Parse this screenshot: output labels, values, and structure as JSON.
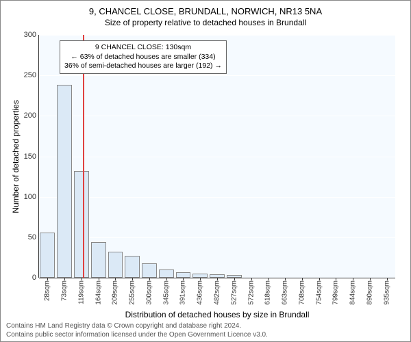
{
  "title": "9, CHANCEL CLOSE, BRUNDALL, NORWICH, NR13 5NA",
  "subtitle": "Size of property relative to detached houses in Brundall",
  "y_axis": {
    "label": "Number of detached properties",
    "min": 0,
    "max": 300,
    "tick_step": 50,
    "ticks": [
      0,
      50,
      100,
      150,
      200,
      250,
      300
    ]
  },
  "x_axis": {
    "label": "Distribution of detached houses by size in Brundall",
    "ticks": [
      "28sqm",
      "73sqm",
      "119sqm",
      "164sqm",
      "209sqm",
      "255sqm",
      "300sqm",
      "345sqm",
      "391sqm",
      "436sqm",
      "482sqm",
      "527sqm",
      "572sqm",
      "618sqm",
      "663sqm",
      "708sqm",
      "754sqm",
      "799sqm",
      "844sqm",
      "890sqm",
      "935sqm"
    ]
  },
  "bars": {
    "values": [
      56,
      238,
      132,
      44,
      32,
      27,
      18,
      10,
      7,
      5,
      4,
      3,
      0,
      0,
      0,
      0,
      0,
      0,
      0,
      0,
      0
    ],
    "fill_color": "#dbe9f6",
    "border_color": "#888888",
    "bar_width_frac": 0.88
  },
  "reference_line": {
    "position_index": 2.1,
    "color": "#e04040"
  },
  "annotation": {
    "line1": "9 CHANCEL CLOSE: 130sqm",
    "line2": "← 63% of detached houses are smaller (334)",
    "line3": "36% of semi-detached houses are larger (192) →"
  },
  "plot": {
    "background_color": "#f5faff",
    "grid_color": "#ffffff"
  },
  "footer": {
    "line1": "Contains HM Land Registry data © Crown copyright and database right 2024.",
    "line2": "Contains public sector information licensed under the Open Government Licence v3.0."
  }
}
